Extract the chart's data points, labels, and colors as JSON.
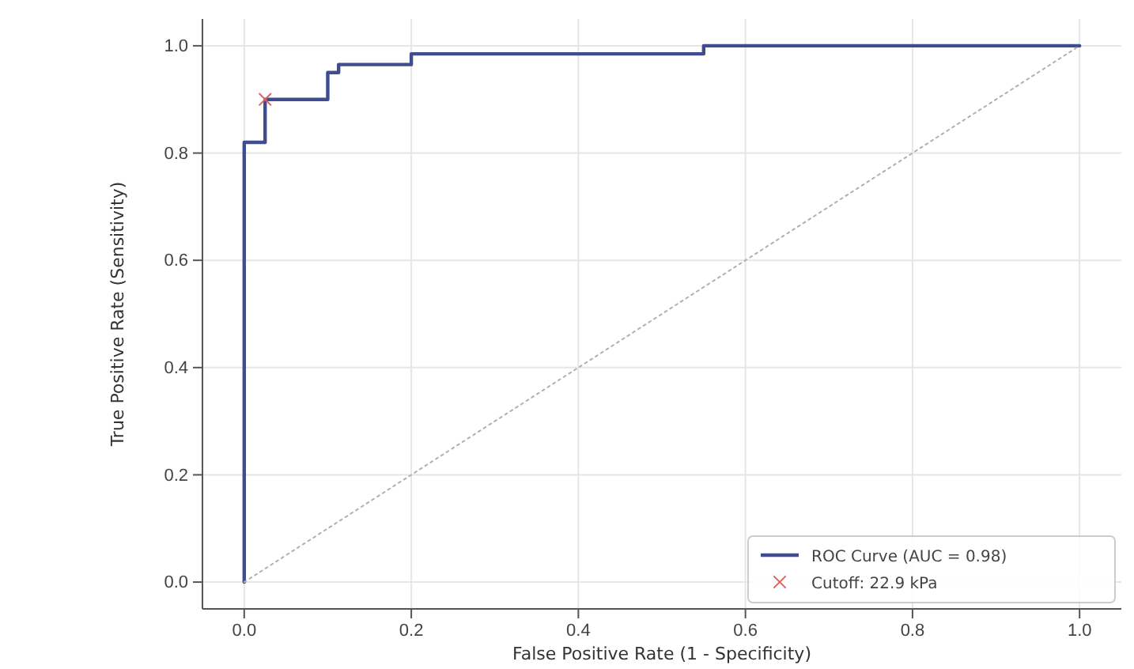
{
  "chart_data": {
    "type": "line",
    "xlabel": "False Positive Rate (1 - Specificity)",
    "ylabel": "True Positive Rate (Sensitivity)",
    "xlim": [
      -0.05,
      1.05
    ],
    "ylim": [
      -0.05,
      1.05
    ],
    "xticks": [
      {
        "value": 0,
        "label": "0.0"
      },
      0.2,
      0.4,
      0.6,
      0.8,
      {
        "value": 1,
        "label": "1.0"
      }
    ],
    "yticks": [
      {
        "value": 0,
        "label": "0.0"
      },
      0.2,
      0.4,
      0.6,
      0.8,
      {
        "value": 1,
        "label": "1.0"
      }
    ],
    "grid": true,
    "legend": "bottom right",
    "series": [
      {
        "name": "ROC Curve (AUC = 0.98)",
        "color": "#3f4d8f",
        "line_style": "solid",
        "x": [
          0,
          0,
          0.025,
          0.025,
          0.1,
          0.1,
          0.113,
          0.113,
          0.2,
          0.2,
          0.55,
          0.55,
          1
        ],
        "values": [
          0,
          0.82,
          0.82,
          0.9,
          0.9,
          0.95,
          0.95,
          0.965,
          0.965,
          0.985,
          0.985,
          1,
          1
        ]
      },
      {
        "color": "#b0b0b0",
        "line_style": "dotted",
        "x": [
          0,
          1
        ],
        "values": [
          0,
          1
        ]
      },
      {
        "name": "Cutoff: 22.9 kPa",
        "type": "scatter",
        "color": "#e06060",
        "marker": "cross",
        "x": [
          0.025
        ],
        "values": [
          0.9
        ]
      }
    ]
  }
}
